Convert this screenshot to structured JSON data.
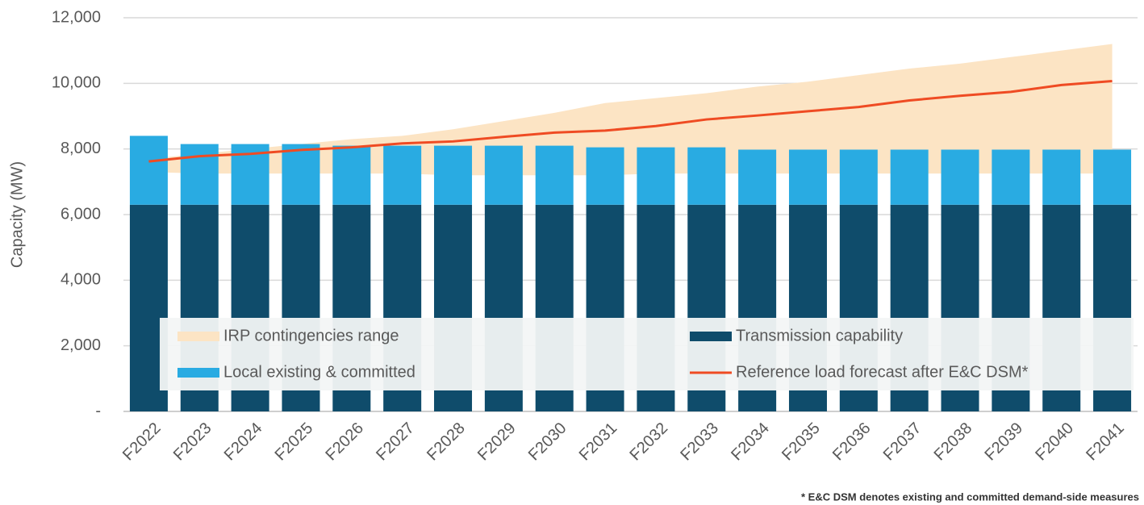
{
  "chart_data": {
    "type": "bar",
    "y_label": "Capacity (MW)",
    "footnote": "* E&C DSM denotes existing and committed demand-side measures",
    "categories": [
      "F2022",
      "F2023",
      "F2024",
      "F2025",
      "F2026",
      "F2027",
      "F2028",
      "F2029",
      "F2030",
      "F2031",
      "F2032",
      "F2033",
      "F2034",
      "F2035",
      "F2036",
      "F2037",
      "F2038",
      "F2039",
      "F2040",
      "F2041"
    ],
    "ylim": [
      0,
      12000
    ],
    "yticks": [
      {
        "value": 0,
        "label": "-"
      },
      {
        "value": 2000,
        "label": "2,000"
      },
      {
        "value": 4000,
        "label": "4,000"
      },
      {
        "value": 6000,
        "label": "6,000"
      },
      {
        "value": 8000,
        "label": "8,000"
      },
      {
        "value": 10000,
        "label": "10,000"
      },
      {
        "value": 12000,
        "label": "12,000"
      }
    ],
    "grid": true,
    "stacked": true,
    "series": [
      {
        "name": "IRP contingencies range",
        "type": "range",
        "color": "#fce4c4",
        "low": [
          7300,
          7250,
          7250,
          7250,
          7250,
          7250,
          7200,
          7200,
          7200,
          7200,
          7250,
          7250,
          7250,
          7250,
          7250,
          7250,
          7250,
          7250,
          7250,
          7250
        ],
        "high": [
          7700,
          7850,
          8000,
          8150,
          8300,
          8400,
          8600,
          8850,
          9100,
          9400,
          9550,
          9700,
          9900,
          10050,
          10250,
          10450,
          10600,
          10800,
          11000,
          11200
        ]
      },
      {
        "name": "Transmission capability",
        "type": "bar",
        "color": "#0f4c6b",
        "values": [
          6300,
          6300,
          6300,
          6300,
          6300,
          6300,
          6300,
          6300,
          6300,
          6300,
          6300,
          6300,
          6300,
          6300,
          6300,
          6300,
          6300,
          6300,
          6300,
          6300
        ]
      },
      {
        "name": "Local existing & committed",
        "type": "bar",
        "color": "#29abe2",
        "values": [
          2100,
          1850,
          1850,
          1850,
          1800,
          1800,
          1800,
          1800,
          1800,
          1750,
          1750,
          1750,
          1680,
          1680,
          1680,
          1680,
          1680,
          1680,
          1680,
          1680
        ]
      },
      {
        "name": "Reference load forecast after E&C DSM*",
        "type": "line",
        "color": "#ef4b23",
        "values": [
          7620,
          7780,
          7850,
          7970,
          8050,
          8170,
          8230,
          8370,
          8500,
          8560,
          8700,
          8900,
          9020,
          9150,
          9280,
          9480,
          9620,
          9740,
          9950,
          10070
        ]
      }
    ]
  }
}
